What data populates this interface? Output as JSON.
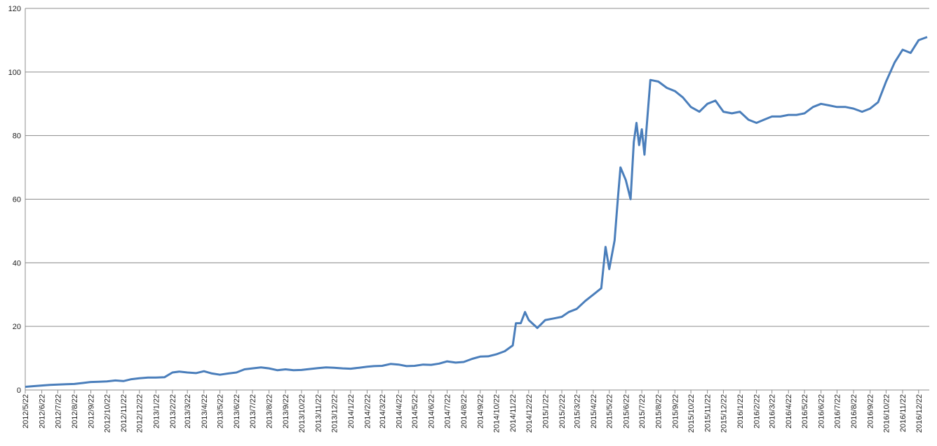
{
  "chart_data": {
    "type": "line",
    "x": [
      "2012/5/22",
      "2012/6/7",
      "2012/6/22",
      "2012/7/7",
      "2012/7/22",
      "2012/8/7",
      "2012/8/22",
      "2012/9/7",
      "2012/9/22",
      "2012/10/7",
      "2012/10/22",
      "2012/11/7",
      "2012/11/22",
      "2012/12/7",
      "2012/12/22",
      "2013/1/7",
      "2013/1/22",
      "2013/2/7",
      "2013/2/22",
      "2013/3/7",
      "2013/3/22",
      "2013/4/7",
      "2013/4/22",
      "2013/5/7",
      "2013/5/22",
      "2013/6/7",
      "2013/6/22",
      "2013/7/7",
      "2013/7/22",
      "2013/8/7",
      "2013/8/22",
      "2013/9/7",
      "2013/9/22",
      "2013/10/7",
      "2013/10/22",
      "2013/11/7",
      "2013/11/22",
      "2013/12/7",
      "2013/12/22",
      "2014/1/7",
      "2014/1/22",
      "2014/2/7",
      "2014/2/22",
      "2014/3/7",
      "2014/3/22",
      "2014/4/7",
      "2014/4/22",
      "2014/5/7",
      "2014/5/22",
      "2014/6/7",
      "2014/6/22",
      "2014/7/7",
      "2014/7/22",
      "2014/8/7",
      "2014/8/22",
      "2014/9/7",
      "2014/9/22",
      "2014/10/7",
      "2014/10/22",
      "2014/11/7",
      "2014/11/22",
      "2014/11/28",
      "2014/12/7",
      "2014/12/15",
      "2014/12/22",
      "2015/1/7",
      "2015/1/22",
      "2015/2/7",
      "2015/2/22",
      "2015/3/7",
      "2015/3/22",
      "2015/4/7",
      "2015/4/22",
      "2015/5/7",
      "2015/5/15",
      "2015/5/22",
      "2015/6/1",
      "2015/6/7",
      "2015/6/12",
      "2015/6/22",
      "2015/7/1",
      "2015/7/7",
      "2015/7/12",
      "2015/7/17",
      "2015/7/22",
      "2015/7/27",
      "2015/8/7",
      "2015/8/22",
      "2015/9/7",
      "2015/9/22",
      "2015/10/7",
      "2015/10/22",
      "2015/11/7",
      "2015/11/22",
      "2015/12/7",
      "2015/12/22",
      "2016/1/7",
      "2016/1/22",
      "2016/2/7",
      "2016/2/22",
      "2016/3/7",
      "2016/3/22",
      "2016/4/7",
      "2016/4/22",
      "2016/5/7",
      "2016/5/22",
      "2016/6/7",
      "2016/6/22",
      "2016/7/7",
      "2016/7/22",
      "2016/8/7",
      "2016/8/22",
      "2016/9/7",
      "2016/9/22",
      "2016/10/7",
      "2016/10/22",
      "2016/11/7",
      "2016/11/22",
      "2016/12/7",
      "2016/12/22",
      "2017/1/7"
    ],
    "series": [
      {
        "color": "#4a7ebb",
        "values": [
          1.0,
          1.2,
          1.4,
          1.6,
          1.7,
          1.8,
          1.9,
          2.2,
          2.5,
          2.6,
          2.7,
          3.0,
          2.8,
          3.4,
          3.7,
          3.9,
          3.9,
          4.0,
          5.5,
          5.8,
          5.5,
          5.3,
          5.9,
          5.2,
          4.8,
          5.2,
          5.5,
          6.5,
          6.8,
          7.1,
          6.8,
          6.2,
          6.5,
          6.2,
          6.3,
          6.6,
          6.9,
          7.1,
          7.0,
          6.8,
          6.7,
          7.0,
          7.3,
          7.5,
          7.6,
          8.2,
          8.0,
          7.5,
          7.6,
          8.0,
          7.9,
          8.3,
          9.0,
          8.6,
          8.8,
          9.8,
          10.5,
          10.6,
          11.2,
          12.2,
          14,
          21,
          21,
          24.5,
          22,
          19.5,
          22,
          22.5,
          23,
          24.5,
          25.5,
          28,
          30,
          32,
          45,
          38,
          47,
          60,
          70,
          66,
          60,
          78,
          84,
          77,
          82,
          74,
          97.5,
          97,
          95,
          94,
          92,
          89,
          87.5,
          90,
          91,
          87.5,
          87,
          87.5,
          85,
          84,
          85,
          86,
          86,
          86.5,
          86.5,
          87,
          89,
          90,
          89.5,
          89,
          89,
          88.5,
          87.5,
          88.5,
          90.5,
          97,
          103,
          107,
          106,
          110,
          111
        ]
      }
    ],
    "xlim": [
      "2012/5/22",
      "2017/1/11"
    ],
    "xticks": [
      "2012/5/22",
      "2012/6/22",
      "2012/7/22",
      "2012/8/22",
      "2012/9/22",
      "2012/10/22",
      "2012/11/22",
      "2012/12/22",
      "2013/1/22",
      "2013/2/22",
      "2013/3/22",
      "2013/4/22",
      "2013/5/22",
      "2013/6/22",
      "2013/7/22",
      "2013/8/22",
      "2013/9/22",
      "2013/10/22",
      "2013/11/22",
      "2013/12/22",
      "2014/1/22",
      "2014/2/22",
      "2014/3/22",
      "2014/4/22",
      "2014/5/22",
      "2014/6/22",
      "2014/7/22",
      "2014/8/22",
      "2014/9/22",
      "2014/10/22",
      "2014/11/22",
      "2014/12/22",
      "2015/1/22",
      "2015/2/22",
      "2015/3/22",
      "2015/4/22",
      "2015/5/22",
      "2015/6/22",
      "2015/7/22",
      "2015/8/22",
      "2015/9/22",
      "2015/10/22",
      "2015/11/22",
      "2015/12/22",
      "2016/1/22",
      "2016/2/22",
      "2016/3/22",
      "2016/4/22",
      "2016/5/22",
      "2016/6/22",
      "2016/7/22",
      "2016/8/22",
      "2016/9/22",
      "2016/10/22",
      "2016/11/22",
      "2016/12/22"
    ],
    "ylim": [
      0,
      120
    ],
    "yticks": [
      0,
      20,
      40,
      60,
      80,
      100,
      120
    ],
    "grid": true
  }
}
